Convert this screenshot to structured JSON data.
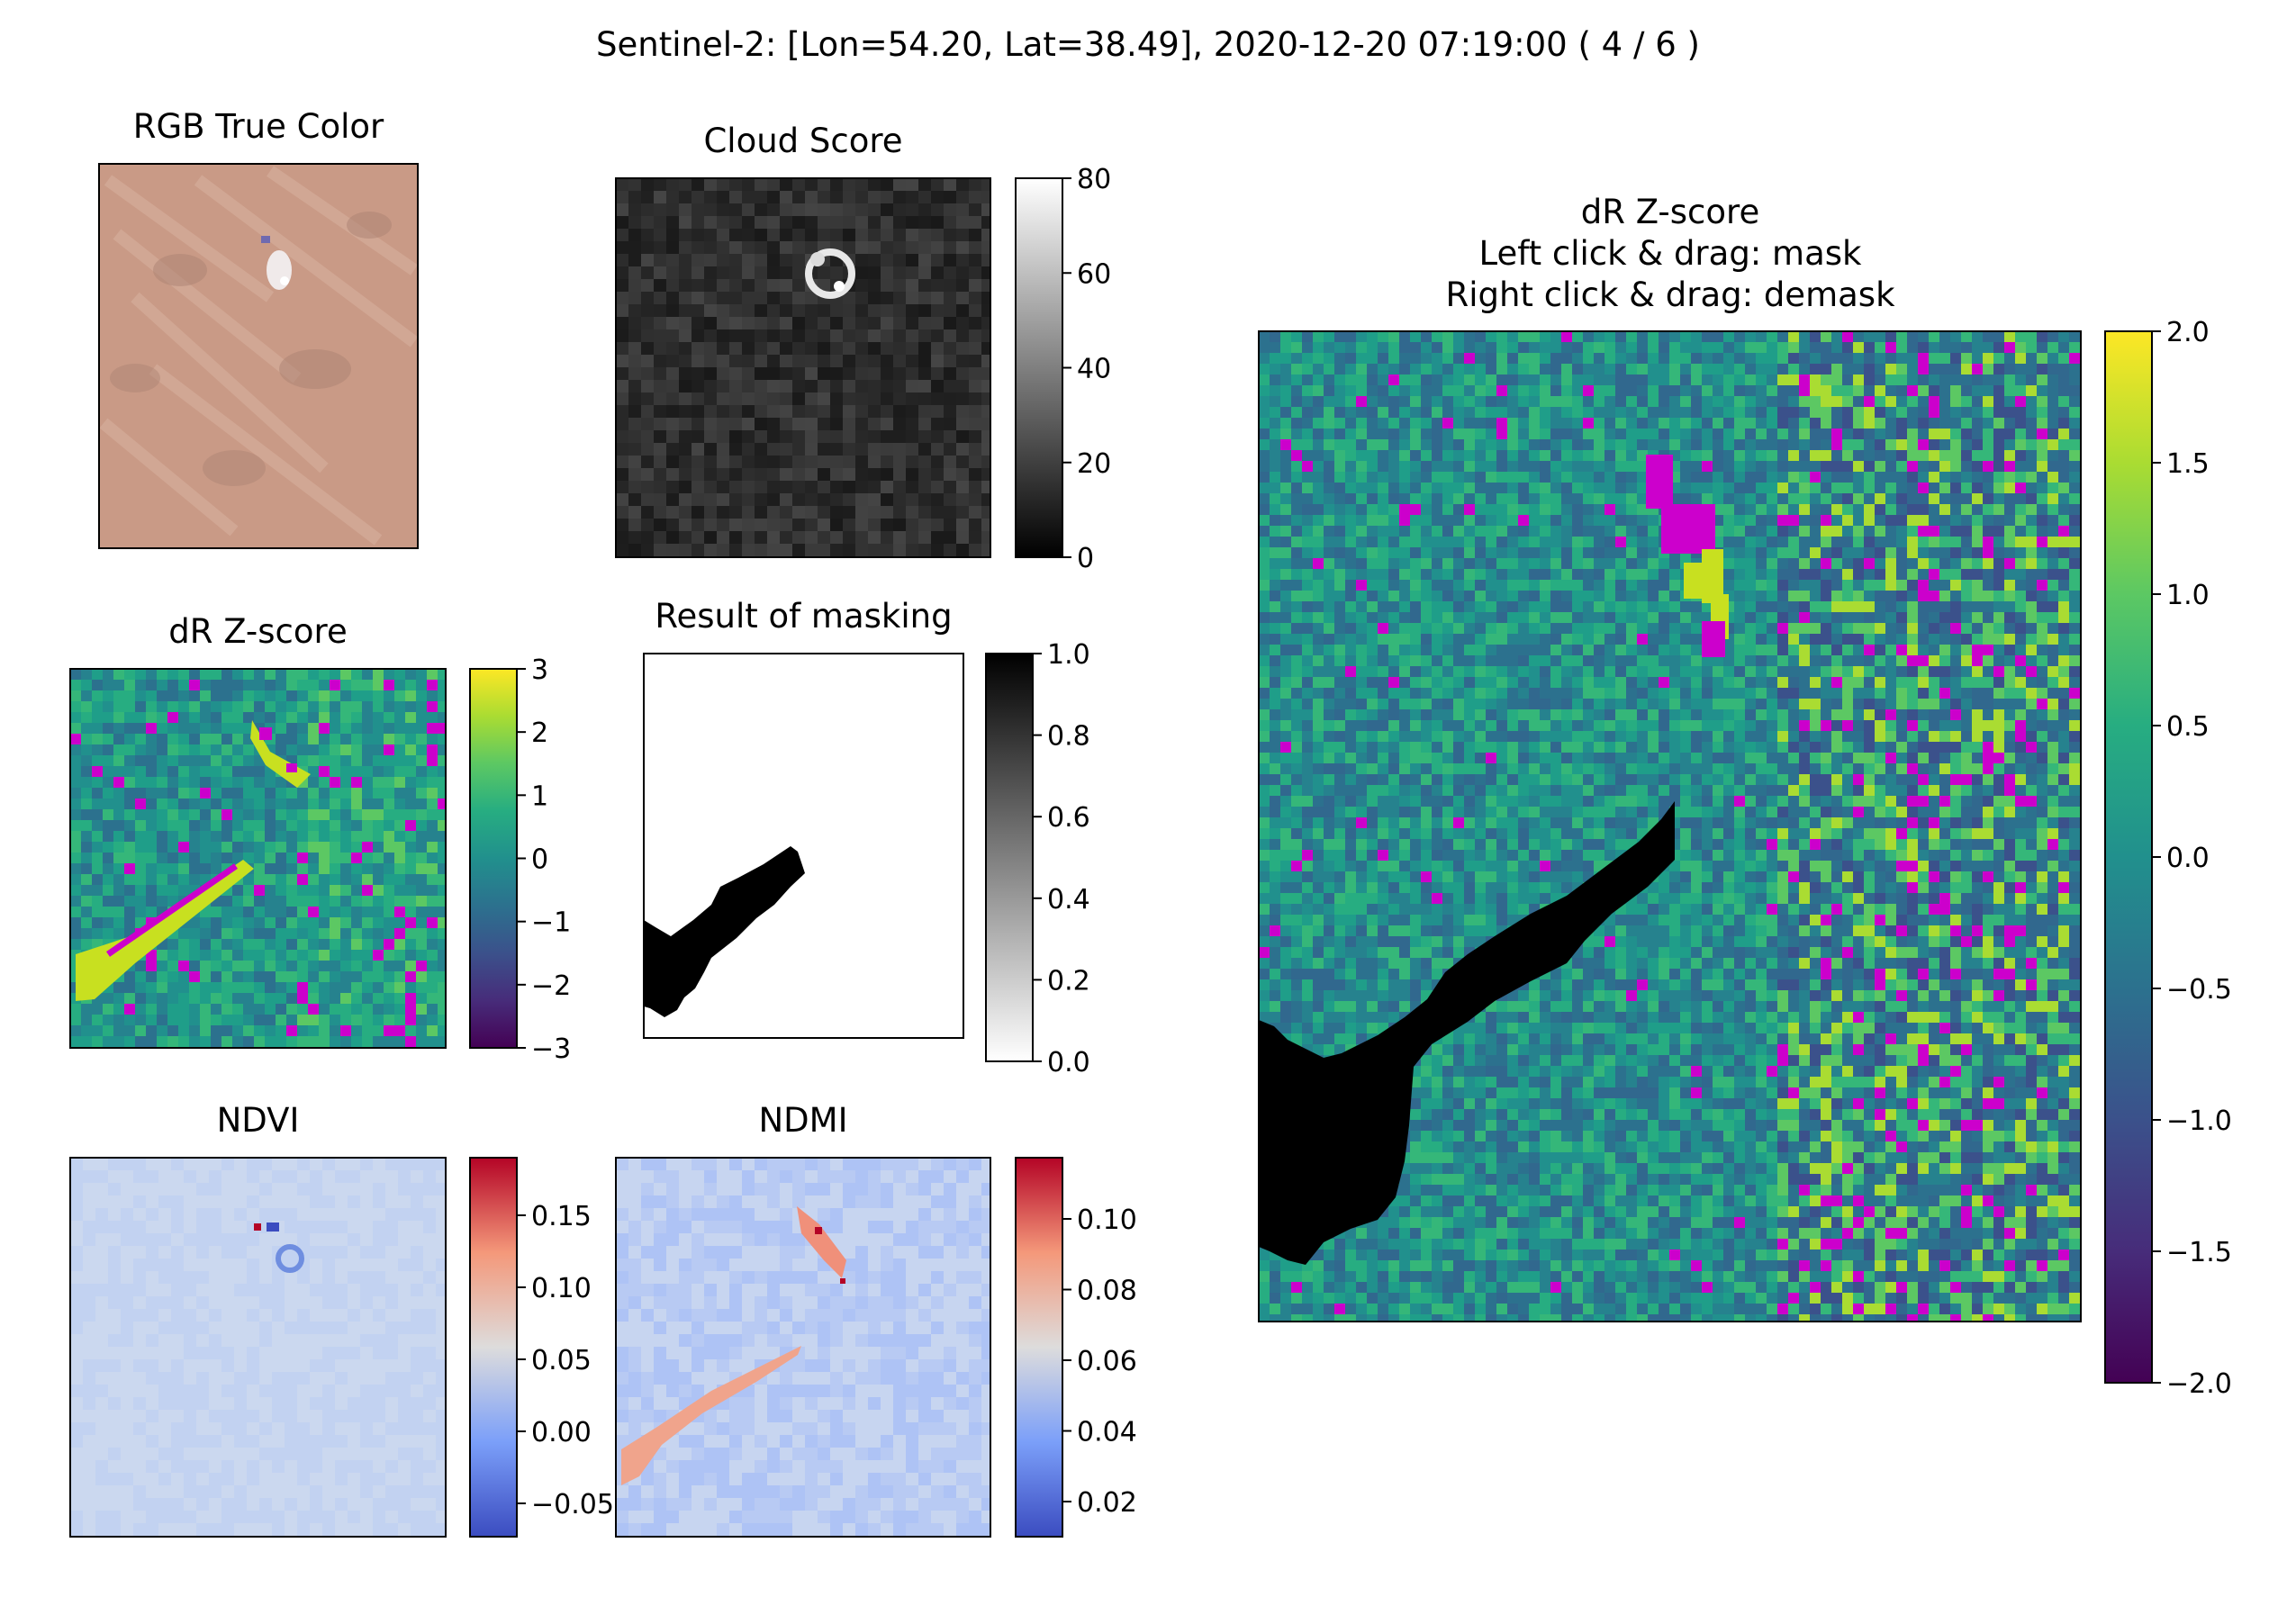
{
  "figure": {
    "suptitle": "Sentinel-2: [Lon=54.20, Lat=38.49], 2020-12-20 07:19:00 ( 4 / 6 )"
  },
  "panels": {
    "rgb": {
      "title": "RGB True Color"
    },
    "cloud": {
      "title": "Cloud Score"
    },
    "dr_small": {
      "title": "dR Z-score"
    },
    "mask": {
      "title": "Result of masking"
    },
    "ndvi": {
      "title": "NDVI"
    },
    "ndmi": {
      "title": "NDMI"
    },
    "dr_big": {
      "title_lines": [
        "dR Z-score",
        "Left click & drag: mask",
        "Right click & drag: demask"
      ]
    }
  },
  "chart_data": [
    {
      "type": "image",
      "title": "RGB True Color",
      "colorbar": null,
      "features": [
        "bright cluster near top center"
      ]
    },
    {
      "type": "heatmap",
      "title": "Cloud Score",
      "colormap": "gray",
      "colorbar": {
        "range": [
          0,
          80
        ],
        "ticks": [
          "0",
          "20",
          "40",
          "60",
          "80"
        ]
      }
    },
    {
      "type": "heatmap",
      "title": "dR Z-score",
      "colormap": "viridis",
      "colorbar": {
        "range": [
          -3,
          3
        ],
        "ticks": [
          "−3",
          "−2",
          "−1",
          "0",
          "1",
          "2",
          "3"
        ]
      }
    },
    {
      "type": "heatmap",
      "title": "Result of masking",
      "colormap": "gray_r",
      "colorbar": {
        "range": [
          0.0,
          1.0
        ],
        "ticks": [
          "0.0",
          "0.2",
          "0.4",
          "0.6",
          "0.8",
          "1.0"
        ]
      }
    },
    {
      "type": "heatmap",
      "title": "NDVI",
      "colormap": "coolwarm",
      "colorbar": {
        "range": [
          -0.065,
          0.19
        ],
        "ticks": [
          "−0.05",
          "0.00",
          "0.05",
          "0.10",
          "0.15"
        ]
      }
    },
    {
      "type": "heatmap",
      "title": "NDMI",
      "colormap": "coolwarm",
      "colorbar": {
        "range": [
          0.011,
          0.116
        ],
        "ticks": [
          "0.02",
          "0.04",
          "0.06",
          "0.08",
          "0.10"
        ]
      }
    },
    {
      "type": "heatmap",
      "title": "dR Z-score",
      "colormap": "viridis",
      "masked_color": "#cc00cc",
      "colorbar": {
        "range": [
          -2.0,
          2.0
        ],
        "ticks": [
          "−2.0",
          "−1.5",
          "−1.0",
          "−0.5",
          "0.0",
          "0.5",
          "1.0",
          "1.5",
          "2.0"
        ]
      }
    }
  ],
  "colors": {
    "masked": "#cc00cc",
    "mask_fill": "#000000",
    "rgb_base": "#c99a86"
  }
}
